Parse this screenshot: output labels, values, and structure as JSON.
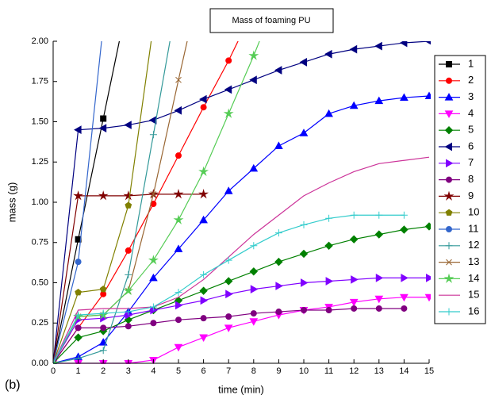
{
  "chart_data": {
    "type": "line",
    "title": "Mass of foaming PU",
    "x_label": "time (min)",
    "y_label": "mass (g)",
    "annotation": "(b)",
    "x": [
      0,
      1,
      2,
      3,
      4,
      5,
      6,
      7,
      8,
      9,
      10,
      11,
      12,
      13,
      14,
      15
    ],
    "xlim": [
      0,
      15
    ],
    "xticks": [
      0,
      1,
      2,
      3,
      4,
      5,
      6,
      7,
      8,
      9,
      10,
      11,
      12,
      13,
      14,
      15
    ],
    "ylim": [
      0,
      2
    ],
    "yticks": [
      {
        "value": 0,
        "label": "0.00"
      },
      {
        "value": 0.25,
        "label": "0.25"
      },
      {
        "value": 0.5,
        "label": "0.50"
      },
      {
        "value": 0.75,
        "label": "0.75"
      },
      {
        "value": 1,
        "label": "1.00"
      },
      {
        "value": 1.25,
        "label": "1.25"
      },
      {
        "value": 1.5,
        "label": "1.50"
      },
      {
        "value": 1.75,
        "label": "1.75"
      },
      {
        "value": 2,
        "label": "2.00"
      }
    ],
    "legend": "right",
    "series": [
      {
        "name": "1",
        "color": "#000000",
        "marker": "square",
        "values": [
          0,
          0.77,
          1.52,
          2.27,
          null,
          null,
          null,
          null,
          null,
          null,
          null,
          null,
          null,
          null,
          null,
          null
        ]
      },
      {
        "name": "2",
        "color": "#ff0000",
        "marker": "circle",
        "values": [
          0,
          0.22,
          0.43,
          0.7,
          0.99,
          1.29,
          1.59,
          1.88,
          2.2,
          null,
          null,
          null,
          null,
          null,
          null,
          null
        ]
      },
      {
        "name": "3",
        "color": "#0000ff",
        "marker": "triangle-up",
        "values": [
          0,
          0.04,
          0.13,
          0.32,
          0.53,
          0.71,
          0.89,
          1.07,
          1.21,
          1.35,
          1.43,
          1.55,
          1.6,
          1.63,
          1.65,
          1.66
        ]
      },
      {
        "name": "4",
        "color": "#ff00ff",
        "marker": "triangle-down",
        "values": [
          0,
          0,
          0,
          0,
          0.02,
          0.1,
          0.16,
          0.22,
          0.26,
          0.3,
          0.33,
          0.35,
          0.38,
          0.4,
          0.41,
          0.41
        ]
      },
      {
        "name": "5",
        "color": "#008000",
        "marker": "diamond",
        "values": [
          0,
          0.16,
          0.2,
          0.27,
          0.33,
          0.39,
          0.45,
          0.51,
          0.57,
          0.63,
          0.68,
          0.73,
          0.77,
          0.8,
          0.83,
          0.85
        ]
      },
      {
        "name": "6",
        "color": "#000080",
        "marker": "triangle-left",
        "values": [
          0,
          1.45,
          1.46,
          1.48,
          1.51,
          1.57,
          1.64,
          1.7,
          1.76,
          1.82,
          1.87,
          1.92,
          1.95,
          1.97,
          1.99,
          2.0
        ]
      },
      {
        "name": "7",
        "color": "#8000ff",
        "marker": "triangle-right",
        "values": [
          0,
          0.27,
          0.28,
          0.3,
          0.33,
          0.36,
          0.39,
          0.43,
          0.46,
          0.48,
          0.5,
          0.51,
          0.52,
          0.53,
          0.53,
          0.53
        ]
      },
      {
        "name": "8",
        "color": "#800080",
        "marker": "circle",
        "values": [
          0,
          0.22,
          0.22,
          0.23,
          0.25,
          0.27,
          0.28,
          0.29,
          0.31,
          0.32,
          0.33,
          0.33,
          0.34,
          0.34,
          0.34,
          null
        ]
      },
      {
        "name": "9",
        "color": "#800000",
        "marker": "star",
        "values": [
          0,
          1.04,
          1.04,
          1.04,
          1.05,
          1.05,
          1.05,
          null,
          null,
          null,
          null,
          null,
          null,
          null,
          null,
          null
        ]
      },
      {
        "name": "10",
        "color": "#808000",
        "marker": "pentagon",
        "values": [
          0,
          0.44,
          0.46,
          0.98,
          2.1,
          null,
          null,
          null,
          null,
          null,
          null,
          null,
          null,
          null,
          null,
          null
        ]
      },
      {
        "name": "11",
        "color": "#3366cc",
        "marker": "circle",
        "values": [
          0,
          0.63,
          2.1,
          null,
          null,
          null,
          null,
          null,
          null,
          null,
          null,
          null,
          null,
          null,
          null,
          null
        ]
      },
      {
        "name": "12",
        "color": "#339999",
        "marker": "plus",
        "values": [
          0,
          0.03,
          0.08,
          0.55,
          1.42,
          2.3,
          null,
          null,
          null,
          null,
          null,
          null,
          null,
          null,
          null,
          null
        ]
      },
      {
        "name": "13",
        "color": "#996633",
        "marker": "cross",
        "values": [
          0,
          0.29,
          0.3,
          0.45,
          1.05,
          1.76,
          2.45,
          null,
          null,
          null,
          null,
          null,
          null,
          null,
          null,
          null
        ]
      },
      {
        "name": "14",
        "color": "#55cc55",
        "marker": "star",
        "values": [
          0,
          0.29,
          0.3,
          0.45,
          0.64,
          0.89,
          1.19,
          1.55,
          1.91,
          2.3,
          null,
          null,
          null,
          null,
          null,
          null
        ]
      },
      {
        "name": "15",
        "color": "#cc3399",
        "marker": "none",
        "values": [
          0,
          0.33,
          0.34,
          0.34,
          0.35,
          0.41,
          0.52,
          0.66,
          0.8,
          0.92,
          1.04,
          1.12,
          1.19,
          1.24,
          1.26,
          1.28
        ]
      },
      {
        "name": "16",
        "color": "#33cccc",
        "marker": "plus",
        "values": [
          0,
          0.3,
          0.31,
          0.32,
          0.35,
          0.44,
          0.55,
          0.64,
          0.73,
          0.81,
          0.86,
          0.9,
          0.92,
          0.92,
          0.92,
          null
        ]
      }
    ]
  }
}
